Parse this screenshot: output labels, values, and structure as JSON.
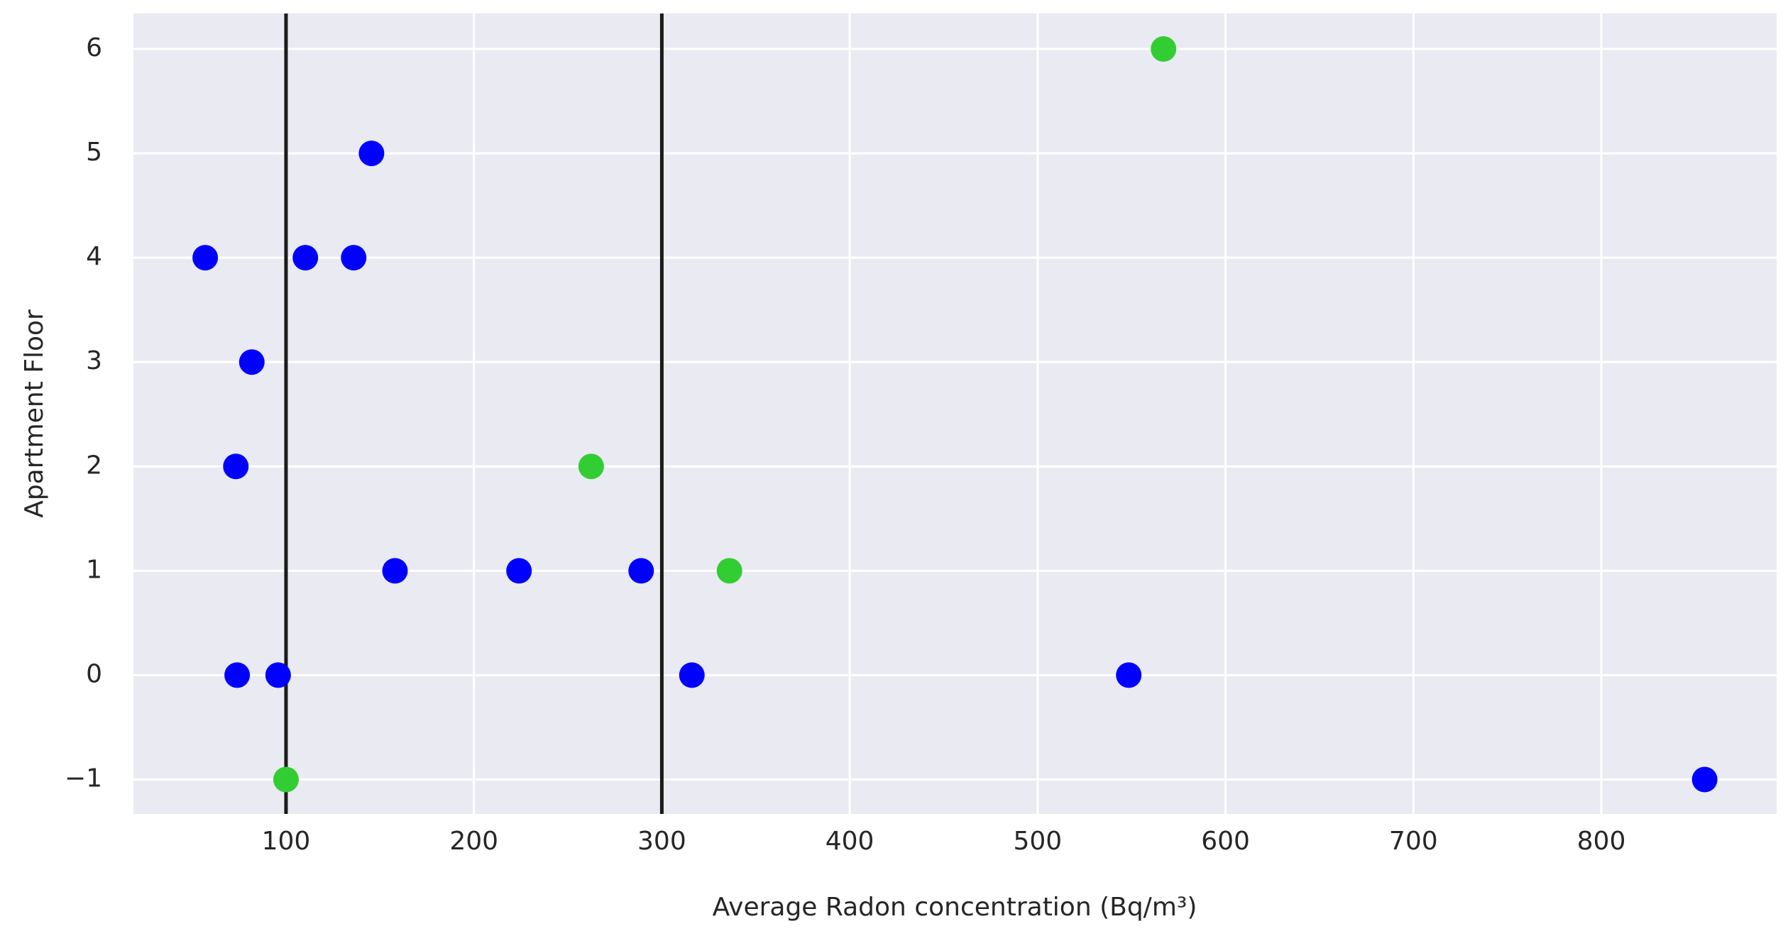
{
  "chart_data": {
    "type": "scatter",
    "x_label": "Average Radon concentration (Bq/m³)",
    "y_label": "Apartment Floor",
    "xlim": [
      18.8,
      893.3
    ],
    "ylim": [
      -1.33,
      6.34
    ],
    "xticks": [
      100,
      200,
      300,
      400,
      500,
      600,
      700,
      800
    ],
    "yticks": [
      {
        "value": -1,
        "label": "−1"
      },
      0,
      1,
      2,
      3,
      4,
      5,
      6
    ],
    "grid": true,
    "background": "#eaeaf2",
    "vlines": [
      100,
      300
    ],
    "series": [
      {
        "color": "#0000ff",
        "x": [
          57,
          110.3,
          136,
          145.5,
          81.8,
          73.3,
          158,
          224,
          289,
          74,
          95.8,
          316,
          548.5,
          855
        ],
        "values": [
          4,
          4,
          4,
          5,
          3,
          2,
          1,
          1,
          1,
          0,
          0,
          0,
          0,
          -1
        ]
      },
      {
        "color": "#32cd32",
        "x": [
          100,
          262.4,
          336,
          567
        ],
        "values": [
          -1,
          2,
          1,
          6
        ]
      }
    ]
  }
}
